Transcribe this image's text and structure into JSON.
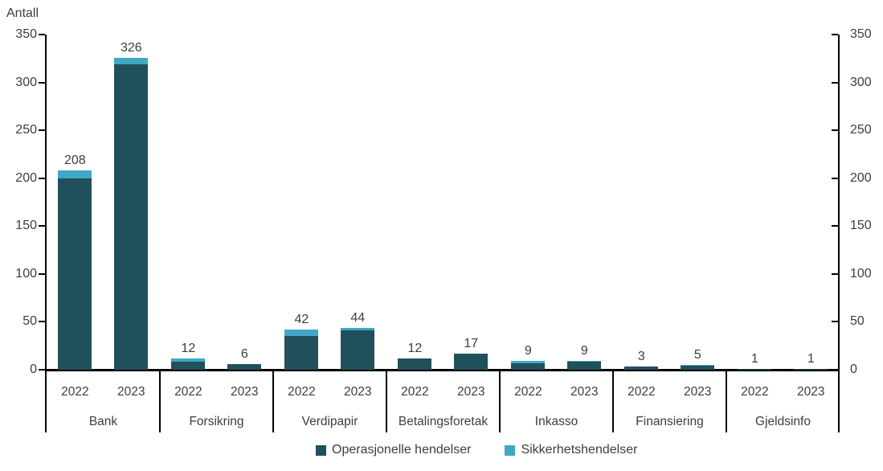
{
  "chart_data": {
    "type": "bar",
    "stacked": true,
    "title": "",
    "ylabel": "Antall",
    "xlabel": "",
    "ylim": [
      0,
      350
    ],
    "yticks": [
      0,
      50,
      100,
      150,
      200,
      250,
      300,
      350
    ],
    "dual_y_axis": true,
    "grid": false,
    "legend_position": "bottom",
    "categories": [
      "Bank",
      "Forsikring",
      "Verdipapir",
      "Betalingsforetak",
      "Inkasso",
      "Finansiering",
      "Gjeldsinfo"
    ],
    "years": [
      "2022",
      "2023"
    ],
    "series": [
      {
        "name": "Operasjonelle hendelser",
        "color": "#20505C",
        "values": {
          "2022": [
            200,
            8,
            35,
            12,
            7,
            3,
            1
          ],
          "2023": [
            319,
            6,
            41,
            17,
            8,
            4,
            1
          ]
        }
      },
      {
        "name": "Sikkerhetshendelser",
        "color": "#3FA8C5",
        "values": {
          "2022": [
            8,
            4,
            7,
            0,
            2,
            0,
            0
          ],
          "2023": [
            7,
            0,
            3,
            0,
            1,
            1,
            0
          ]
        }
      }
    ],
    "totals": {
      "2022": [
        208,
        12,
        42,
        12,
        9,
        3,
        1
      ],
      "2023": [
        326,
        6,
        44,
        17,
        9,
        5,
        1
      ]
    },
    "colors": {
      "axis": "#000000",
      "text": "#3D3D3D",
      "background": "#FFFFFF"
    }
  }
}
